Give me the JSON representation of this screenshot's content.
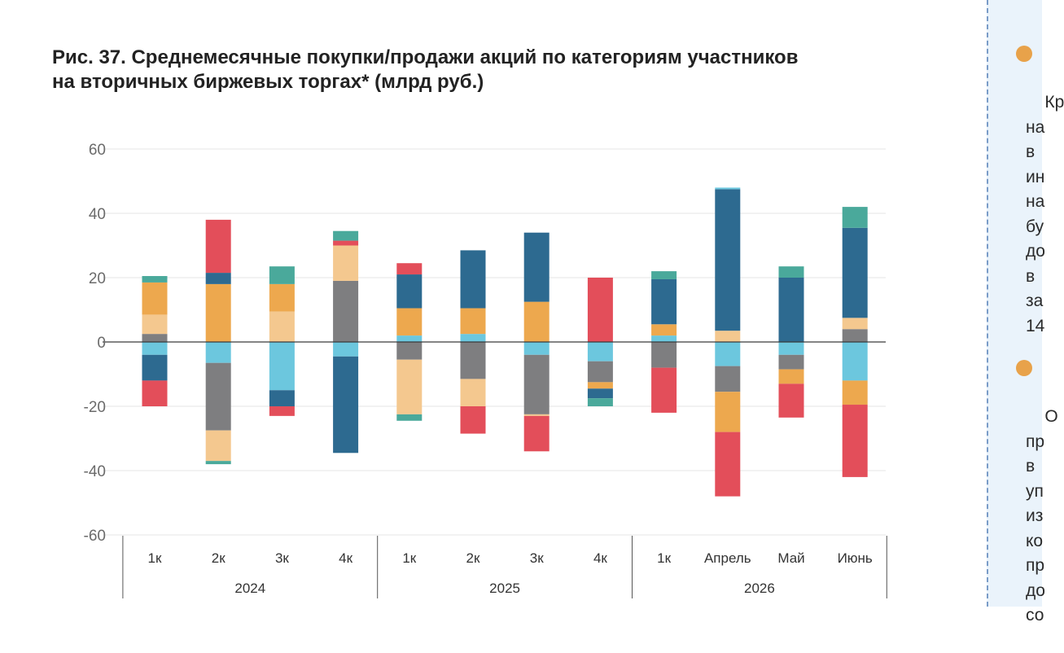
{
  "title_lines": [
    "Рис. 37. Среднемесячные покупки/продажи акций по категориям участников",
    "на вторичных биржевых торгах* (млрд руб.)"
  ],
  "side_text": {
    "block1": "Кр\nна\nв \nин\nна\nбу\nдо\nв \nза\n14",
    "block2": "О\nпр\nв \nуп\nиз\nко\nпр\nдо\nсо"
  },
  "colors": {
    "teal": "#4aa99b",
    "orange": "#eda84e",
    "peach": "#f4c88f",
    "gray": "#7e7e80",
    "lightblue": "#6cc7de",
    "navy": "#2d6a90",
    "red": "#e34e5a",
    "bullet": "#e8a24a",
    "panel_bg": "#eaf3fb",
    "panel_border": "#7a9cc8"
  },
  "chart_data": {
    "type": "bar",
    "stacked": true,
    "ylim": [
      -60,
      60
    ],
    "yticks": [
      60,
      40,
      20,
      0,
      -20,
      -40,
      -60
    ],
    "grid": true,
    "categories": [
      "1к",
      "2к",
      "3к",
      "4к",
      "1к",
      "2к",
      "3к",
      "4к",
      "1к",
      "Апрель",
      "Май",
      "Июнь"
    ],
    "groups": [
      {
        "label": "2024",
        "span": 4
      },
      {
        "label": "2025",
        "span": 4
      },
      {
        "label": "2026",
        "span": 4
      }
    ],
    "bars": [
      {
        "positive": [
          [
            "gray",
            2.5
          ],
          [
            "peach",
            6
          ],
          [
            "orange",
            10
          ],
          [
            "teal",
            2
          ]
        ],
        "negative": [
          [
            "lightblue",
            4
          ],
          [
            "navy",
            8
          ],
          [
            "red",
            8
          ]
        ]
      },
      {
        "positive": [
          [
            "orange",
            18
          ],
          [
            "navy",
            3.5
          ],
          [
            "red",
            16.5
          ]
        ],
        "negative": [
          [
            "lightblue",
            6.5
          ],
          [
            "gray",
            21
          ],
          [
            "peach",
            9.5
          ],
          [
            "teal",
            1
          ]
        ]
      },
      {
        "positive": [
          [
            "peach",
            9.5
          ],
          [
            "orange",
            8.5
          ],
          [
            "teal",
            5.5
          ]
        ],
        "negative": [
          [
            "lightblue",
            15
          ],
          [
            "navy",
            5
          ],
          [
            "red",
            3
          ]
        ]
      },
      {
        "positive": [
          [
            "gray",
            19
          ],
          [
            "peach",
            11
          ],
          [
            "red",
            1.5
          ],
          [
            "teal",
            3
          ]
        ],
        "negative": [
          [
            "lightblue",
            4.5
          ],
          [
            "navy",
            30
          ]
        ]
      },
      {
        "positive": [
          [
            "lightblue",
            2
          ],
          [
            "orange",
            8.5
          ],
          [
            "navy",
            10.5
          ],
          [
            "red",
            3.5
          ]
        ],
        "negative": [
          [
            "gray",
            5.5
          ],
          [
            "peach",
            17
          ],
          [
            "teal",
            2
          ]
        ]
      },
      {
        "positive": [
          [
            "lightblue",
            2.5
          ],
          [
            "orange",
            8
          ],
          [
            "navy",
            18
          ]
        ],
        "negative": [
          [
            "gray",
            11.5
          ],
          [
            "peach",
            8.5
          ],
          [
            "red",
            8.5
          ]
        ]
      },
      {
        "positive": [
          [
            "orange",
            12.5
          ],
          [
            "navy",
            21.5
          ]
        ],
        "negative": [
          [
            "lightblue",
            4
          ],
          [
            "gray",
            18.5
          ],
          [
            "peach",
            0.5
          ],
          [
            "red",
            11
          ]
        ]
      },
      {
        "positive": [
          [
            "red",
            20
          ]
        ],
        "negative": [
          [
            "lightblue",
            6
          ],
          [
            "gray",
            6.5
          ],
          [
            "orange",
            2
          ],
          [
            "navy",
            3
          ],
          [
            "teal",
            2.5
          ]
        ]
      },
      {
        "positive": [
          [
            "lightblue",
            2
          ],
          [
            "orange",
            3.5
          ],
          [
            "navy",
            14
          ],
          [
            "teal",
            2.5
          ]
        ],
        "negative": [
          [
            "gray",
            8
          ],
          [
            "red",
            14
          ]
        ]
      },
      {
        "positive": [
          [
            "peach",
            3.5
          ],
          [
            "navy",
            44
          ],
          [
            "lightblue",
            0.5
          ]
        ],
        "negative": [
          [
            "lightblue",
            7.5
          ],
          [
            "gray",
            8
          ],
          [
            "orange",
            12.5
          ],
          [
            "red",
            20
          ]
        ]
      },
      {
        "positive": [
          [
            "navy",
            20
          ],
          [
            "teal",
            3.5
          ]
        ],
        "negative": [
          [
            "lightblue",
            4
          ],
          [
            "gray",
            4.5
          ],
          [
            "orange",
            4.5
          ],
          [
            "red",
            10.5
          ]
        ]
      },
      {
        "positive": [
          [
            "gray",
            4
          ],
          [
            "peach",
            3.5
          ],
          [
            "navy",
            28
          ],
          [
            "teal",
            6.5
          ]
        ],
        "negative": [
          [
            "lightblue",
            12
          ],
          [
            "orange",
            7.5
          ],
          [
            "red",
            22.5
          ]
        ]
      }
    ]
  }
}
